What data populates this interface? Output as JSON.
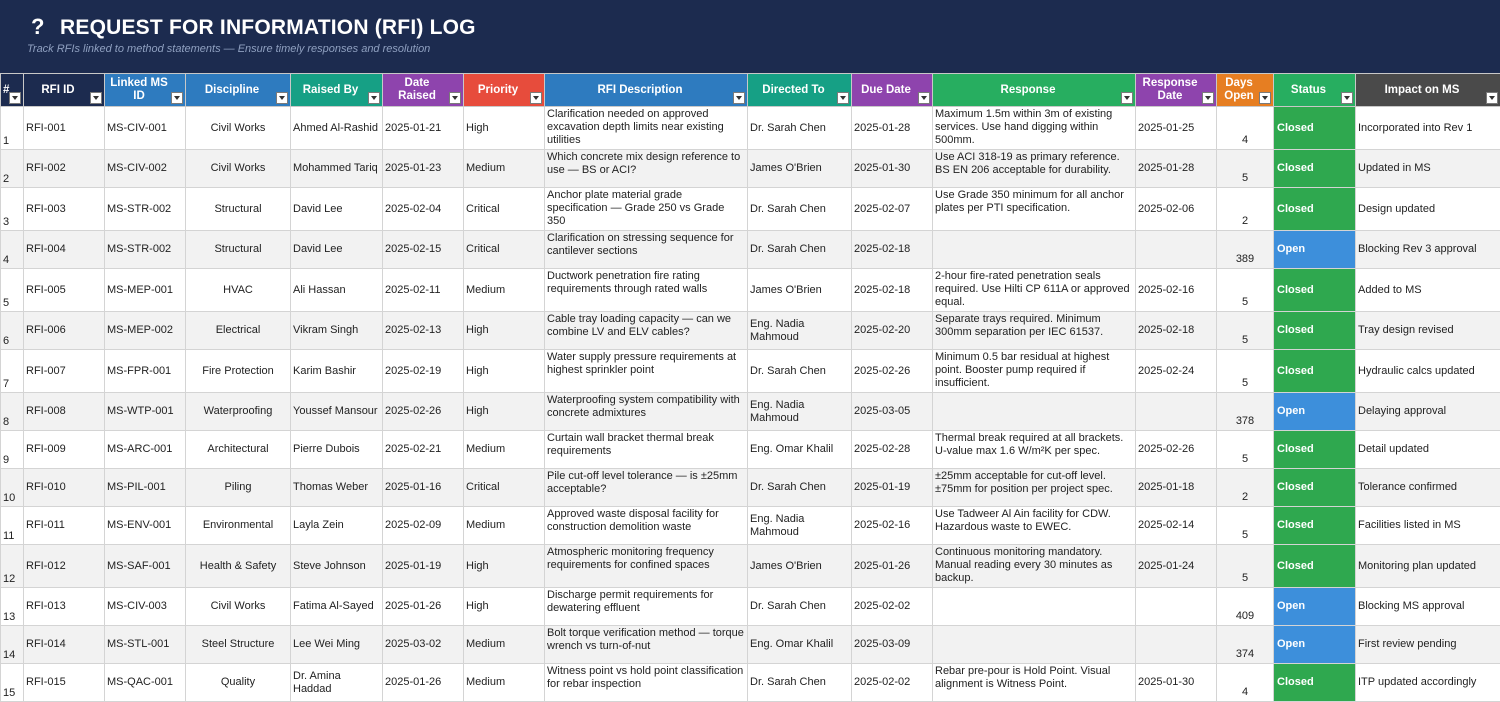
{
  "header": {
    "icon": "question-mark-icon",
    "title": "REQUEST FOR INFORMATION (RFI) LOG",
    "subtitle": "Track RFIs linked to method statements — Ensure timely responses and resolution"
  },
  "colors": {
    "banner": "#1c2b4f",
    "closed": "#2fa84f",
    "open": "#3d8fdb"
  },
  "columns": [
    {
      "label": "#",
      "color": "#1c2b4f"
    },
    {
      "label": "RFI ID",
      "color": "#1c2b4f"
    },
    {
      "label": "Linked MS ID",
      "color": "#2e7bbf"
    },
    {
      "label": "Discipline",
      "color": "#2e7bbf"
    },
    {
      "label": "Raised By",
      "color": "#16a085"
    },
    {
      "label": "Date Raised",
      "color": "#8e44ad"
    },
    {
      "label": "Priority",
      "color": "#e74c3c"
    },
    {
      "label": "RFI Description",
      "color": "#2e7bbf"
    },
    {
      "label": "Directed To",
      "color": "#16a085"
    },
    {
      "label": "Due Date",
      "color": "#8e44ad"
    },
    {
      "label": "Response",
      "color": "#27ae60"
    },
    {
      "label": "Response Date",
      "color": "#8e44ad"
    },
    {
      "label": "Days Open",
      "color": "#e67e22"
    },
    {
      "label": "Status",
      "color": "#27ae60"
    },
    {
      "label": "Impact on MS",
      "color": "#4a4a4a"
    }
  ],
  "rows": [
    {
      "n": "1",
      "id": "RFI-001",
      "ms": "MS-CIV-001",
      "discipline": "Civil Works",
      "raised_by": "Ahmed Al-Rashid",
      "date_raised": "2025-01-21",
      "priority": "High",
      "description": "Clarification needed on approved excavation depth limits near existing utilities",
      "directed_to": "Dr. Sarah Chen",
      "due": "2025-01-28",
      "response": "Maximum 1.5m within 3m of existing services. Use hand digging within 500mm.",
      "response_date": "2025-01-25",
      "days": "4",
      "status": "Closed",
      "impact": "Incorporated into Rev 1"
    },
    {
      "n": "2",
      "id": "RFI-002",
      "ms": "MS-CIV-002",
      "discipline": "Civil Works",
      "raised_by": "Mohammed Tariq",
      "date_raised": "2025-01-23",
      "priority": "Medium",
      "description": "Which concrete mix design reference to use — BS or ACI?",
      "directed_to": "James O'Brien",
      "due": "2025-01-30",
      "response": "Use ACI 318-19 as primary reference. BS EN 206 acceptable for durability.",
      "response_date": "2025-01-28",
      "days": "5",
      "status": "Closed",
      "impact": "Updated in MS"
    },
    {
      "n": "3",
      "id": "RFI-003",
      "ms": "MS-STR-002",
      "discipline": "Structural",
      "raised_by": "David Lee",
      "date_raised": "2025-02-04",
      "priority": "Critical",
      "description": "Anchor plate material grade specification — Grade 250 vs Grade 350",
      "directed_to": "Dr. Sarah Chen",
      "due": "2025-02-07",
      "response": "Use Grade 350 minimum for all anchor plates per PTI specification.",
      "response_date": "2025-02-06",
      "days": "2",
      "status": "Closed",
      "impact": "Design updated"
    },
    {
      "n": "4",
      "id": "RFI-004",
      "ms": "MS-STR-002",
      "discipline": "Structural",
      "raised_by": "David Lee",
      "date_raised": "2025-02-15",
      "priority": "Critical",
      "description": "Clarification on stressing sequence for cantilever sections",
      "directed_to": "Dr. Sarah Chen",
      "due": "2025-02-18",
      "response": "",
      "response_date": "",
      "days": "389",
      "status": "Open",
      "impact": "Blocking Rev 3 approval"
    },
    {
      "n": "5",
      "id": "RFI-005",
      "ms": "MS-MEP-001",
      "discipline": "HVAC",
      "raised_by": "Ali Hassan",
      "date_raised": "2025-02-11",
      "priority": "Medium",
      "description": "Ductwork penetration fire rating requirements through rated walls",
      "directed_to": "James O'Brien",
      "due": "2025-02-18",
      "response": "2-hour fire-rated penetration seals required. Use Hilti CP 611A or approved equal.",
      "response_date": "2025-02-16",
      "days": "5",
      "status": "Closed",
      "impact": "Added to MS"
    },
    {
      "n": "6",
      "id": "RFI-006",
      "ms": "MS-MEP-002",
      "discipline": "Electrical",
      "raised_by": "Vikram Singh",
      "date_raised": "2025-02-13",
      "priority": "High",
      "description": "Cable tray loading capacity — can we combine LV and ELV cables?",
      "directed_to": "Eng. Nadia Mahmoud",
      "due": "2025-02-20",
      "response": "Separate trays required. Minimum 300mm separation per IEC 61537.",
      "response_date": "2025-02-18",
      "days": "5",
      "status": "Closed",
      "impact": "Tray design revised"
    },
    {
      "n": "7",
      "id": "RFI-007",
      "ms": "MS-FPR-001",
      "discipline": "Fire Protection",
      "raised_by": "Karim Bashir",
      "date_raised": "2025-02-19",
      "priority": "High",
      "description": "Water supply pressure requirements at highest sprinkler point",
      "directed_to": "Dr. Sarah Chen",
      "due": "2025-02-26",
      "response": "Minimum 0.5 bar residual at highest point. Booster pump required if insufficient.",
      "response_date": "2025-02-24",
      "days": "5",
      "status": "Closed",
      "impact": "Hydraulic calcs updated"
    },
    {
      "n": "8",
      "id": "RFI-008",
      "ms": "MS-WTP-001",
      "discipline": "Waterproofing",
      "raised_by": "Youssef Mansour",
      "date_raised": "2025-02-26",
      "priority": "High",
      "description": "Waterproofing system compatibility with concrete admixtures",
      "directed_to": "Eng. Nadia Mahmoud",
      "due": "2025-03-05",
      "response": "",
      "response_date": "",
      "days": "378",
      "status": "Open",
      "impact": "Delaying approval"
    },
    {
      "n": "9",
      "id": "RFI-009",
      "ms": "MS-ARC-001",
      "discipline": "Architectural",
      "raised_by": "Pierre Dubois",
      "date_raised": "2025-02-21",
      "priority": "Medium",
      "description": "Curtain wall bracket thermal break requirements",
      "directed_to": "Eng. Omar Khalil",
      "due": "2025-02-28",
      "response": "Thermal break required at all brackets. U-value max 1.6 W/m²K per spec.",
      "response_date": "2025-02-26",
      "days": "5",
      "status": "Closed",
      "impact": "Detail updated"
    },
    {
      "n": "10",
      "id": "RFI-010",
      "ms": "MS-PIL-001",
      "discipline": "Piling",
      "raised_by": "Thomas Weber",
      "date_raised": "2025-01-16",
      "priority": "Critical",
      "description": "Pile cut-off level tolerance — is ±25mm acceptable?",
      "directed_to": "Dr. Sarah Chen",
      "due": "2025-01-19",
      "response": "±25mm acceptable for cut-off level. ±75mm for position per project spec.",
      "response_date": "2025-01-18",
      "days": "2",
      "status": "Closed",
      "impact": "Tolerance confirmed"
    },
    {
      "n": "11",
      "id": "RFI-011",
      "ms": "MS-ENV-001",
      "discipline": "Environmental",
      "raised_by": "Layla Zein",
      "date_raised": "2025-02-09",
      "priority": "Medium",
      "description": "Approved waste disposal facility for construction demolition waste",
      "directed_to": "Eng. Nadia Mahmoud",
      "due": "2025-02-16",
      "response": "Use Tadweer Al Ain facility for CDW. Hazardous waste to EWEC.",
      "response_date": "2025-02-14",
      "days": "5",
      "status": "Closed",
      "impact": "Facilities listed in MS"
    },
    {
      "n": "12",
      "id": "RFI-012",
      "ms": "MS-SAF-001",
      "discipline": "Health & Safety",
      "raised_by": "Steve Johnson",
      "date_raised": "2025-01-19",
      "priority": "High",
      "description": "Atmospheric monitoring frequency requirements for confined spaces",
      "directed_to": "James O'Brien",
      "due": "2025-01-26",
      "response": "Continuous monitoring mandatory. Manual reading every 30 minutes as backup.",
      "response_date": "2025-01-24",
      "days": "5",
      "status": "Closed",
      "impact": "Monitoring plan updated"
    },
    {
      "n": "13",
      "id": "RFI-013",
      "ms": "MS-CIV-003",
      "discipline": "Civil Works",
      "raised_by": "Fatima Al-Sayed",
      "date_raised": "2025-01-26",
      "priority": "High",
      "description": "Discharge permit requirements for dewatering effluent",
      "directed_to": "Dr. Sarah Chen",
      "due": "2025-02-02",
      "response": "",
      "response_date": "",
      "days": "409",
      "status": "Open",
      "impact": "Blocking MS approval"
    },
    {
      "n": "14",
      "id": "RFI-014",
      "ms": "MS-STL-001",
      "discipline": "Steel Structure",
      "raised_by": "Lee Wei Ming",
      "date_raised": "2025-03-02",
      "priority": "Medium",
      "description": "Bolt torque verification method — torque wrench vs turn-of-nut",
      "directed_to": "Eng. Omar Khalil",
      "due": "2025-03-09",
      "response": "",
      "response_date": "",
      "days": "374",
      "status": "Open",
      "impact": "First review pending"
    },
    {
      "n": "15",
      "id": "RFI-015",
      "ms": "MS-QAC-001",
      "discipline": "Quality",
      "raised_by": "Dr. Amina Haddad",
      "date_raised": "2025-01-26",
      "priority": "Medium",
      "description": "Witness point vs hold point classification for rebar inspection",
      "directed_to": "Dr. Sarah Chen",
      "due": "2025-02-02",
      "response": "Rebar pre-pour is Hold Point. Visual alignment is Witness Point.",
      "response_date": "2025-01-30",
      "days": "4",
      "status": "Closed",
      "impact": "ITP updated accordingly"
    }
  ]
}
